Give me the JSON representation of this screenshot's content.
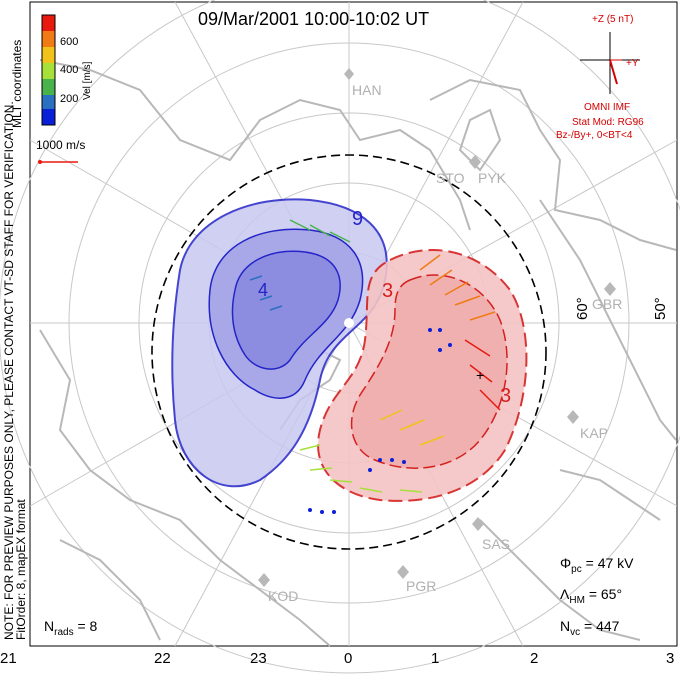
{
  "title": "09/Mar/2001  10:00-10:02 UT",
  "mlt_labels": [
    "21",
    "22",
    "23",
    "0",
    "1",
    "2",
    "3"
  ],
  "lat_labels": [
    "60°",
    "50°"
  ],
  "radar_sites": [
    "HAN",
    "STO",
    "PYK",
    "GBR",
    "KAP",
    "SAS",
    "PGR",
    "KOD"
  ],
  "colorbar": {
    "label": "Vel [m/s]",
    "ticks": [
      "600",
      "400",
      "200"
    ],
    "colors": [
      "#0a1fd8",
      "#2a6fc0",
      "#49b24b",
      "#a8e03a",
      "#f0c21a",
      "#f07a14",
      "#e81a10"
    ]
  },
  "vector_scale_label": "1000 m/s",
  "imf": {
    "z_label": "+Z (5 nT)",
    "y_label": "+Y",
    "source": "OMNI IMF",
    "stat_mod_line1": "Stat Mod: RG96",
    "stat_mod_line2": "Bz-/By+, 0<BT<4"
  },
  "contour_labels": [
    "9",
    "4",
    "3",
    "3"
  ],
  "stats": {
    "phi_symbol": "Φ",
    "phi_sub": "pc",
    "phi_value": "= 47 kV",
    "lambda_symbol": "Λ",
    "lambda_sub": "HM",
    "lambda_value": "= 65°",
    "nvc_symbol": "N",
    "nvc_sub": "vc",
    "nvc_value": "= 447",
    "nrads_symbol": "N",
    "nrads_sub": "rads",
    "nrads_value": "= 8"
  },
  "side_text": {
    "line1": "NOTE: FOR PREVIEW PURPOSES ONLY, PLEASE CONTACT VT-SD STAFF FOR VERIFICATION.",
    "line2": "FitOrder: 8,  mapEX format",
    "coords": "MLT coordinates"
  },
  "colors": {
    "positive_cell": "#e83a3a",
    "negative_cell": "#2424c8",
    "boundary": "#000000",
    "land": "#b8b8b8"
  }
}
